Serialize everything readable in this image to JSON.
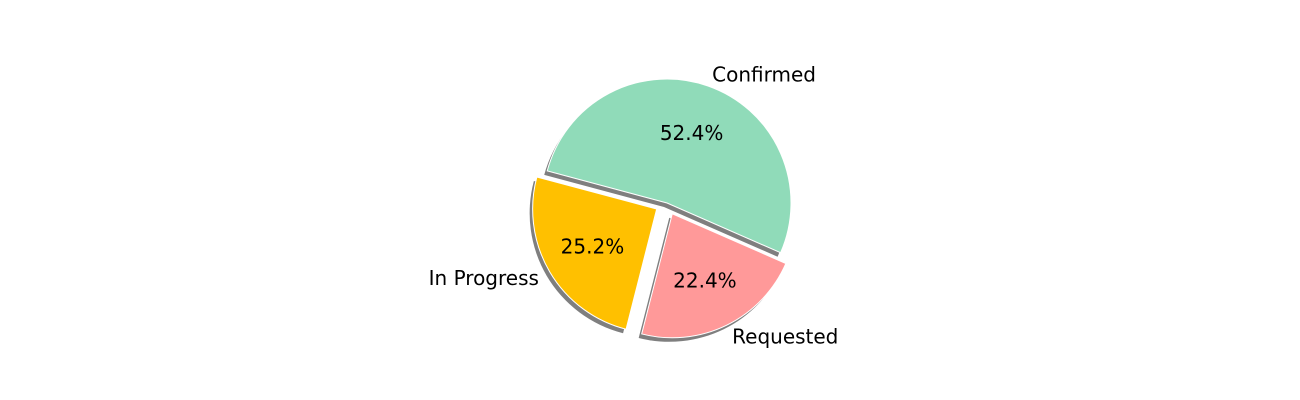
{
  "chart_data": {
    "type": "pie",
    "title": "",
    "slices": [
      {
        "label": "Confirmed",
        "value": 52.4,
        "pct_label": "52.4%",
        "color": "#90dbb9",
        "exploded": false
      },
      {
        "label": "In Progress",
        "value": 25.2,
        "pct_label": "25.2%",
        "color": "#ffc000",
        "exploded": true
      },
      {
        "label": "Requested",
        "value": 22.4,
        "pct_label": "22.4%",
        "color": "#ff9999",
        "exploded": true
      }
    ],
    "shadow": true,
    "grid": false,
    "legend": false
  }
}
